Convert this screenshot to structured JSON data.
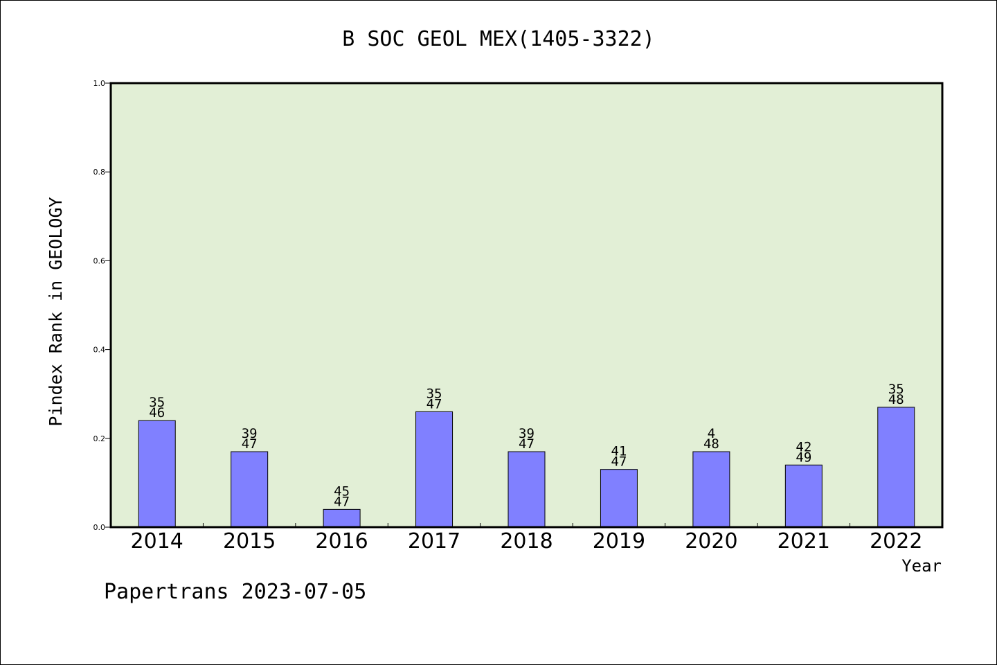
{
  "chart_data": {
    "type": "bar",
    "title": "B SOC GEOL MEX(1405-3322)",
    "xlabel": "Year",
    "ylabel": "Pindex Rank in GEOLOGY",
    "ylim": [
      0,
      1.0
    ],
    "yticks": [
      "0.0",
      "0.2",
      "0.4",
      "0.6",
      "0.8",
      "1.0"
    ],
    "categories": [
      "2014",
      "2015",
      "2016",
      "2017",
      "2018",
      "2019",
      "2020",
      "2021",
      "2022"
    ],
    "values": [
      0.24,
      0.17,
      0.04,
      0.26,
      0.17,
      0.13,
      0.17,
      0.14,
      0.27
    ],
    "labels_top": [
      "35",
      "39",
      "45",
      "35",
      "39",
      "41",
      "4",
      "42",
      "35"
    ],
    "labels_bottom": [
      "46",
      "47",
      "47",
      "47",
      "47",
      "47",
      "48",
      "49",
      "48"
    ],
    "grid": false,
    "colors": {
      "plot_background": "#e2efd6",
      "bar_fill": "#8080ff",
      "bar_stroke": "#000000"
    }
  },
  "footer": {
    "watermark": "Papertrans 2023-07-05"
  }
}
